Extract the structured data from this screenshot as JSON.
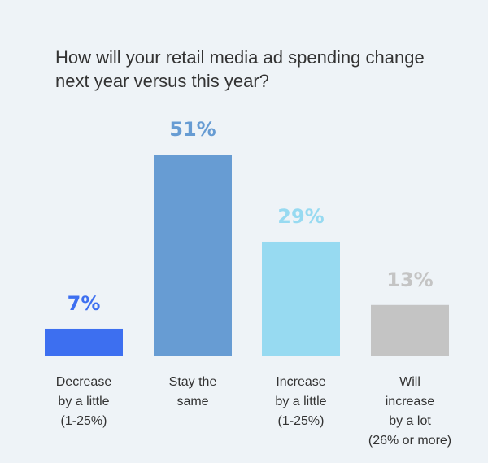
{
  "chart_data": {
    "type": "bar",
    "title": "How will your retail media ad spending change next year versus this year?",
    "categories": [
      [
        "Decrease",
        "by a little",
        "(1-25%)"
      ],
      [
        "Stay the",
        "same"
      ],
      [
        "Increase",
        "by a little",
        "(1-25%)"
      ],
      [
        "Will",
        "increase",
        "by a lot",
        "(26% or more)"
      ]
    ],
    "values": [
      7,
      51,
      29,
      13
    ],
    "data_labels": [
      "7%",
      "51%",
      "29%",
      "13%"
    ],
    "colors": [
      "#3d6ff0",
      "#679cd3",
      "#97daf1",
      "#c4c4c4"
    ],
    "ylim": [
      0,
      51
    ],
    "grid": false,
    "legend": "none"
  }
}
